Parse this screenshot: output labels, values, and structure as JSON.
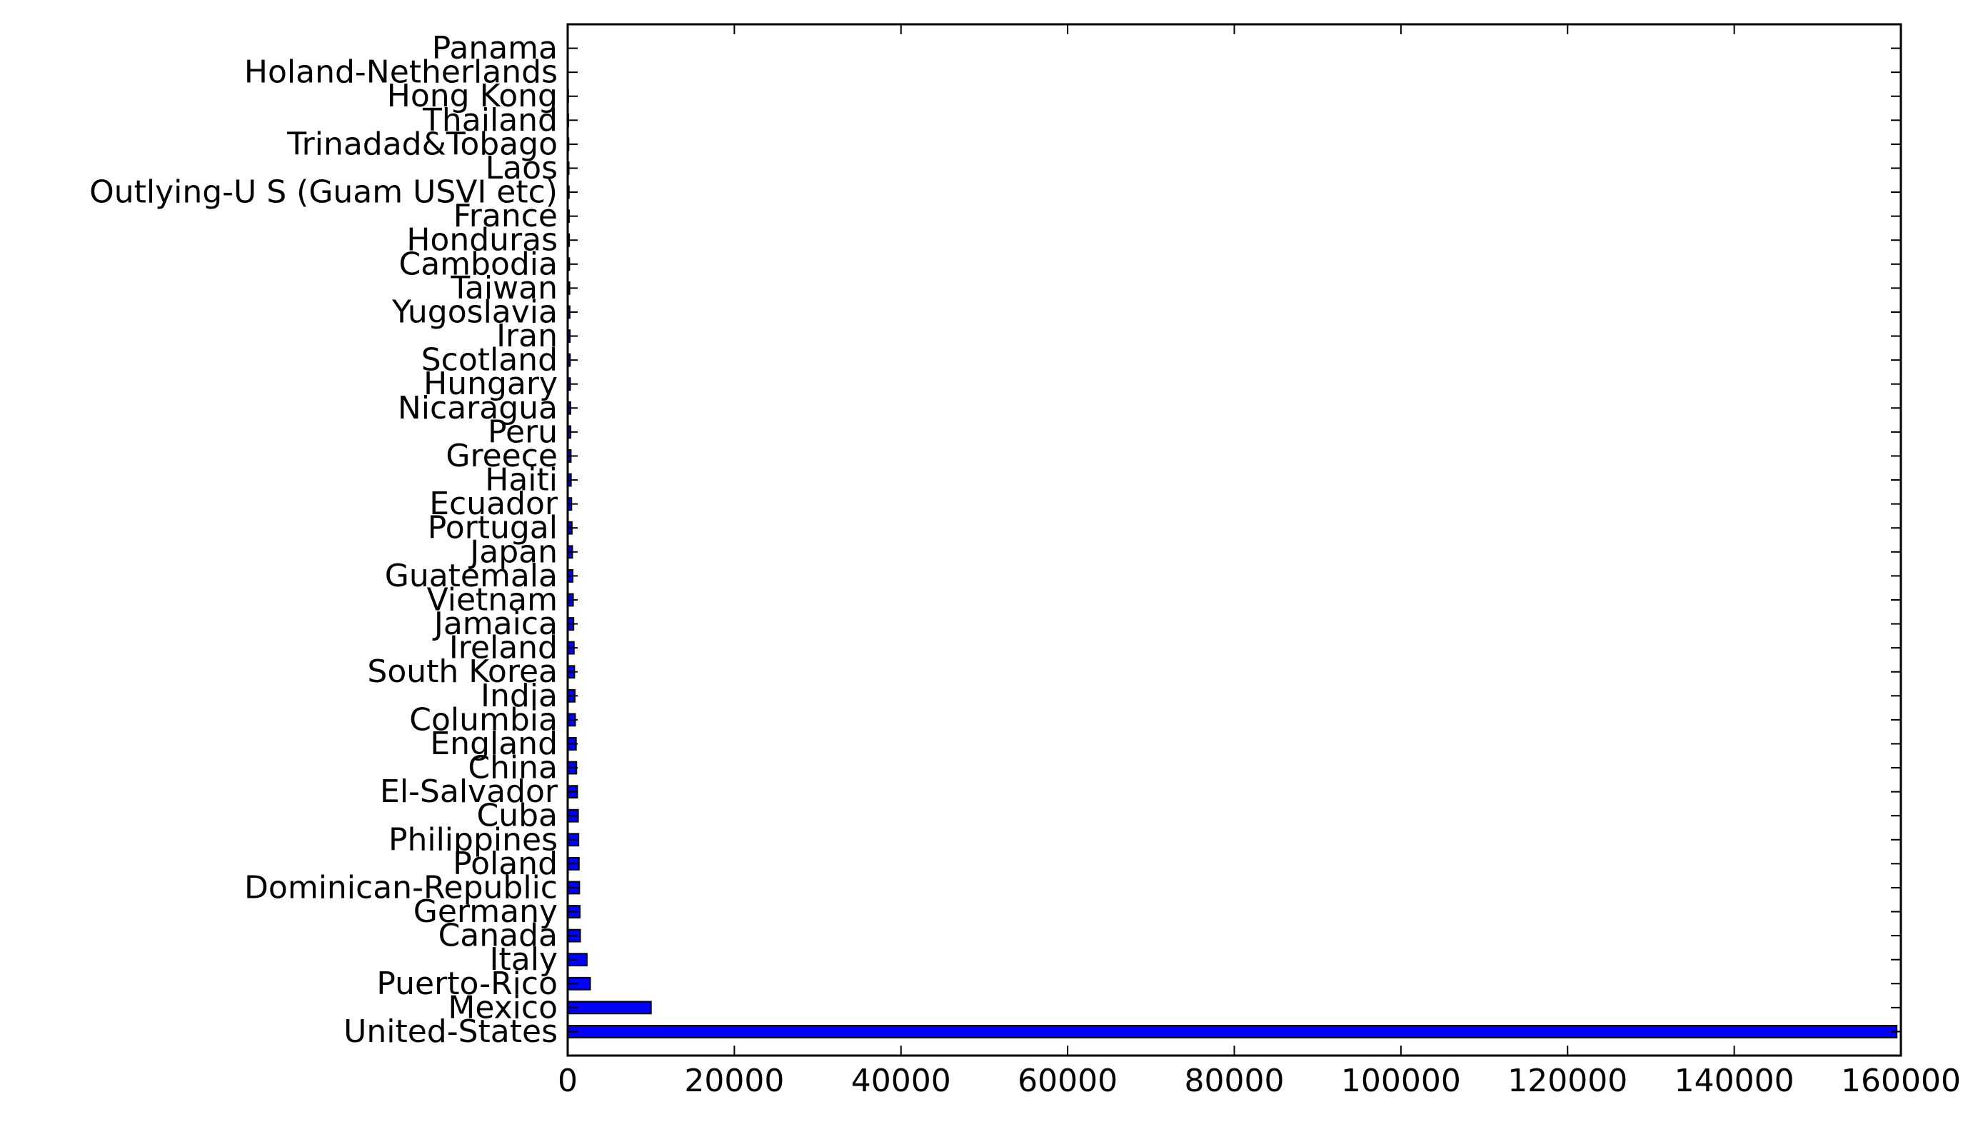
{
  "chart_data": {
    "type": "bar",
    "orientation": "horizontal",
    "categories": [
      "United-States",
      "Mexico",
      "Puerto-Rico",
      "Italy",
      "Canada",
      "Germany",
      "Dominican-Republic",
      "Poland",
      "Philippines",
      "Cuba",
      "El-Salvador",
      "China",
      "England",
      "Columbia",
      "India",
      "South Korea",
      "Ireland",
      "Jamaica",
      "Vietnam",
      "Guatemala",
      "Japan",
      "Portugal",
      "Ecuador",
      "Haiti",
      "Greece",
      "Peru",
      "Nicaragua",
      "Hungary",
      "Scotland",
      "Iran",
      "Yugoslavia",
      "Taiwan",
      "Cambodia",
      "Honduras",
      "France",
      "Outlying-U S (Guam USVI etc)",
      "Laos",
      "Trinadad&Tobago",
      "Thailand",
      "Hong Kong",
      "Holand-Netherlands",
      "Panama"
    ],
    "values": [
      159500,
      10000,
      2700,
      2300,
      1500,
      1450,
      1400,
      1350,
      1300,
      1250,
      1150,
      1050,
      1000,
      900,
      850,
      800,
      750,
      700,
      650,
      600,
      550,
      500,
      450,
      400,
      380,
      350,
      330,
      300,
      280,
      260,
      240,
      220,
      200,
      180,
      160,
      150,
      130,
      110,
      90,
      70,
      40,
      20
    ],
    "xlim": [
      0,
      160000
    ],
    "xticks": [
      "0",
      "20000",
      "40000",
      "60000",
      "80000",
      "100000",
      "120000",
      "140000",
      "160000"
    ],
    "title": "",
    "xlabel": "",
    "ylabel": "",
    "grid": false,
    "bar_color": "#0000ff"
  }
}
